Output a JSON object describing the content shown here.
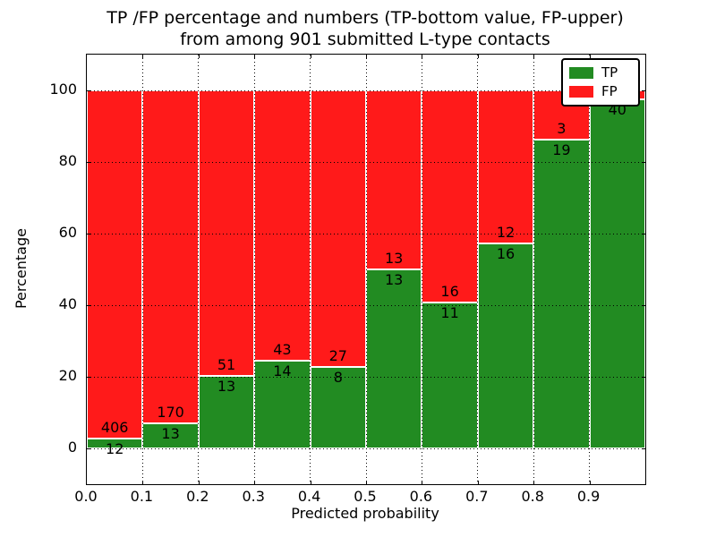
{
  "figure": {
    "title_line1": "TP /FP percentage and numbers (TP-bottom value, FP-upper)",
    "title_line2": "from among 901 submitted L-type contacts"
  },
  "chart_data": {
    "type": "bar",
    "stacked": true,
    "title": "TP /FP percentage and numbers (TP-bottom value, FP-upper) from among 901 submitted L-type contacts",
    "xlabel": "Predicted probability",
    "ylabel": "Percentage",
    "total_submitted_contacts": 901,
    "xlim": [
      0.0,
      1.0
    ],
    "ylim": [
      -10,
      110
    ],
    "x_tick_labels": [
      "0.0",
      "0.1",
      "0.2",
      "0.3",
      "0.4",
      "0.5",
      "0.6",
      "0.7",
      "0.8",
      "0.9"
    ],
    "y_tick_values": [
      0,
      20,
      40,
      60,
      80,
      100
    ],
    "grid": "dotted-black-both-axes",
    "colors": {
      "tp": "#228b22",
      "fp": "#ff1a1a",
      "bar_edge": "#ffffff",
      "axes": "#000000"
    },
    "legend": {
      "position": "upper-right",
      "entries": [
        {
          "label": "TP",
          "color": "#228b22"
        },
        {
          "label": "FP",
          "color": "#ff1a1a"
        }
      ]
    },
    "bars": [
      {
        "bin": "0.0-0.1",
        "tp": 12,
        "fp": 406,
        "tp_pct": 2.87
      },
      {
        "bin": "0.1-0.2",
        "tp": 13,
        "fp": 170,
        "tp_pct": 7.1
      },
      {
        "bin": "0.2-0.3",
        "tp": 13,
        "fp": 51,
        "tp_pct": 20.31
      },
      {
        "bin": "0.3-0.4",
        "tp": 14,
        "fp": 43,
        "tp_pct": 24.56
      },
      {
        "bin": "0.4-0.5",
        "tp": 8,
        "fp": 27,
        "tp_pct": 22.86
      },
      {
        "bin": "0.5-0.6",
        "tp": 13,
        "fp": 13,
        "tp_pct": 50.0
      },
      {
        "bin": "0.6-0.7",
        "tp": 11,
        "fp": 16,
        "tp_pct": 40.74
      },
      {
        "bin": "0.7-0.8",
        "tp": 16,
        "fp": 12,
        "tp_pct": 57.14
      },
      {
        "bin": "0.8-0.9",
        "tp": 19,
        "fp": 3,
        "tp_pct": 86.36
      },
      {
        "bin": "0.9-1.0",
        "tp": 40,
        "fp": null,
        "tp_pct": 97.56,
        "fp_label_hidden_by_legend": true
      }
    ]
  }
}
